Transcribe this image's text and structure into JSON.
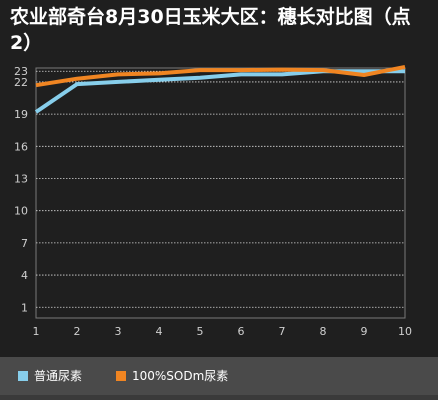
{
  "title": "农业部奇台8月30日玉米大区：穗长对比图（点2）",
  "chart_data": {
    "type": "line",
    "title": "农业部奇台8月30日玉米大区：穗长对比图（点2）",
    "xlabel": "",
    "ylabel": "",
    "x": [
      1,
      2,
      3,
      4,
      5,
      6,
      7,
      8,
      9,
      10
    ],
    "xlim": [
      1,
      10
    ],
    "ylim": [
      0,
      23.3
    ],
    "yticks": [
      1,
      4,
      7,
      10,
      13,
      16,
      19,
      22,
      23
    ],
    "grid": true,
    "legend_position": "bottom",
    "series": [
      {
        "name": "普通尿素",
        "color": "#87ceeb",
        "values": [
          19.2,
          21.8,
          22.0,
          22.2,
          22.4,
          22.7,
          22.7,
          23.0,
          23.0,
          23.0
        ]
      },
      {
        "name": "100%SODm尿素",
        "color": "#f08522",
        "values": [
          21.7,
          22.3,
          22.7,
          22.8,
          23.1,
          23.1,
          23.15,
          23.1,
          22.65,
          23.4
        ]
      }
    ]
  }
}
